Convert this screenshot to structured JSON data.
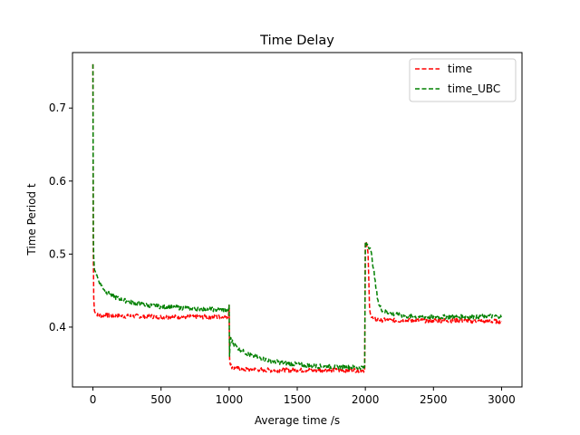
{
  "chart_data": {
    "type": "line",
    "title": "Time Delay",
    "xlabel": "Average time /s",
    "ylabel": "Time Period t",
    "xlim": [
      -150,
      3150
    ],
    "ylim": [
      0.318,
      0.776
    ],
    "xticks": [
      0,
      500,
      1000,
      1500,
      2000,
      2500,
      3000
    ],
    "yticks": [
      0.4,
      0.5,
      0.6,
      0.7
    ],
    "grid": false,
    "legend": {
      "placement": "top-right"
    },
    "series": [
      {
        "name": "time",
        "color": "#ff0000",
        "linestyle": "dashed",
        "points": [
          [
            0,
            0.76
          ],
          [
            3,
            0.5
          ],
          [
            6,
            0.44
          ],
          [
            10,
            0.425
          ],
          [
            20,
            0.419
          ],
          [
            50,
            0.416
          ],
          [
            100,
            0.416
          ],
          [
            200,
            0.415
          ],
          [
            300,
            0.415
          ],
          [
            400,
            0.415
          ],
          [
            500,
            0.414
          ],
          [
            600,
            0.414
          ],
          [
            700,
            0.414
          ],
          [
            800,
            0.414
          ],
          [
            900,
            0.414
          ],
          [
            995,
            0.414
          ],
          [
            1000,
            0.43
          ],
          [
            1003,
            0.36
          ],
          [
            1010,
            0.348
          ],
          [
            1030,
            0.344
          ],
          [
            1100,
            0.342
          ],
          [
            1200,
            0.342
          ],
          [
            1300,
            0.341
          ],
          [
            1400,
            0.341
          ],
          [
            1500,
            0.341
          ],
          [
            1600,
            0.341
          ],
          [
            1700,
            0.341
          ],
          [
            1800,
            0.341
          ],
          [
            1900,
            0.341
          ],
          [
            1995,
            0.341
          ],
          [
            2000,
            0.517
          ],
          [
            2010,
            0.512
          ],
          [
            2020,
            0.5
          ],
          [
            2030,
            0.43
          ],
          [
            2040,
            0.415
          ],
          [
            2060,
            0.411
          ],
          [
            2100,
            0.41
          ],
          [
            2200,
            0.409
          ],
          [
            2300,
            0.409
          ],
          [
            2400,
            0.409
          ],
          [
            2500,
            0.409
          ],
          [
            2600,
            0.409
          ],
          [
            2700,
            0.409
          ],
          [
            2800,
            0.408
          ],
          [
            2900,
            0.408
          ],
          [
            3000,
            0.408
          ]
        ]
      },
      {
        "name": "time_UBC",
        "color": "#008000",
        "linestyle": "dashed",
        "points": [
          [
            0,
            0.76
          ],
          [
            3,
            0.52
          ],
          [
            6,
            0.495
          ],
          [
            10,
            0.482
          ],
          [
            20,
            0.475
          ],
          [
            40,
            0.465
          ],
          [
            70,
            0.455
          ],
          [
            100,
            0.448
          ],
          [
            150,
            0.442
          ],
          [
            200,
            0.438
          ],
          [
            300,
            0.433
          ],
          [
            400,
            0.43
          ],
          [
            500,
            0.428
          ],
          [
            600,
            0.427
          ],
          [
            700,
            0.426
          ],
          [
            800,
            0.425
          ],
          [
            900,
            0.424
          ],
          [
            995,
            0.423
          ],
          [
            1000,
            0.43
          ],
          [
            1003,
            0.36
          ],
          [
            1008,
            0.385
          ],
          [
            1030,
            0.378
          ],
          [
            1060,
            0.372
          ],
          [
            1100,
            0.367
          ],
          [
            1150,
            0.362
          ],
          [
            1200,
            0.359
          ],
          [
            1300,
            0.354
          ],
          [
            1400,
            0.351
          ],
          [
            1500,
            0.349
          ],
          [
            1600,
            0.347
          ],
          [
            1700,
            0.346
          ],
          [
            1800,
            0.345
          ],
          [
            1900,
            0.345
          ],
          [
            1995,
            0.345
          ],
          [
            2000,
            0.517
          ],
          [
            2020,
            0.513
          ],
          [
            2040,
            0.505
          ],
          [
            2060,
            0.48
          ],
          [
            2080,
            0.45
          ],
          [
            2100,
            0.43
          ],
          [
            2130,
            0.422
          ],
          [
            2200,
            0.418
          ],
          [
            2300,
            0.415
          ],
          [
            2400,
            0.414
          ],
          [
            2500,
            0.414
          ],
          [
            2600,
            0.414
          ],
          [
            2700,
            0.414
          ],
          [
            2800,
            0.414
          ],
          [
            2900,
            0.415
          ],
          [
            3000,
            0.415
          ]
        ]
      }
    ]
  }
}
